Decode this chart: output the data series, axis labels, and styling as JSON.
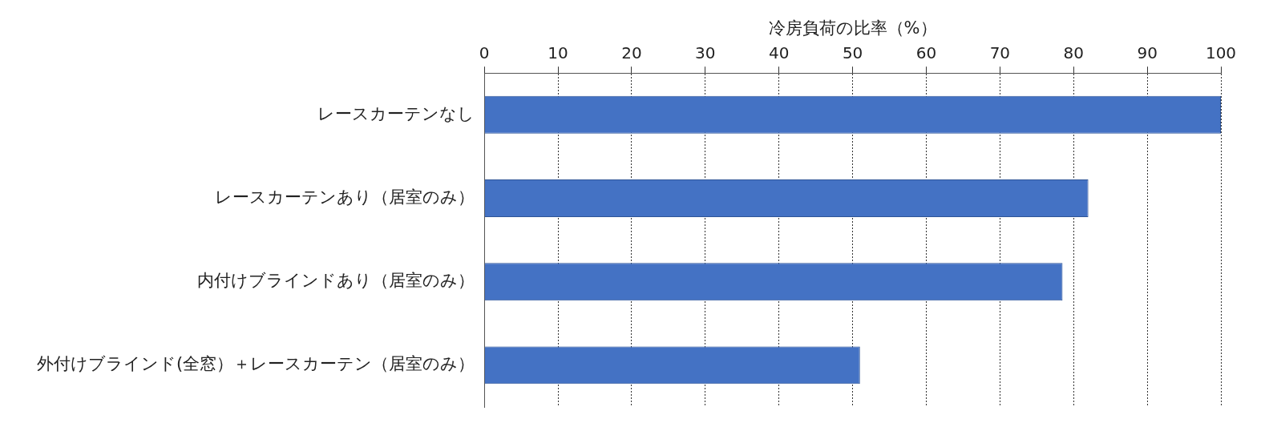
{
  "chart_data": {
    "type": "bar",
    "orientation": "horizontal",
    "xlabel": "冷房負荷の比率（%）",
    "categories": [
      "レースカーテンなし",
      "レースカーテンあり（居室のみ）",
      "内付けブラインドあり（居室のみ）",
      "外付けブラインド(全窓）＋レースカーテン（居室のみ）"
    ],
    "values": [
      100,
      82,
      78.5,
      51
    ],
    "color": "#4472c4",
    "xlim": [
      0,
      100
    ],
    "xticks": [
      0,
      10,
      20,
      30,
      40,
      50,
      60,
      70,
      80,
      90,
      100
    ],
    "grid": "x"
  }
}
